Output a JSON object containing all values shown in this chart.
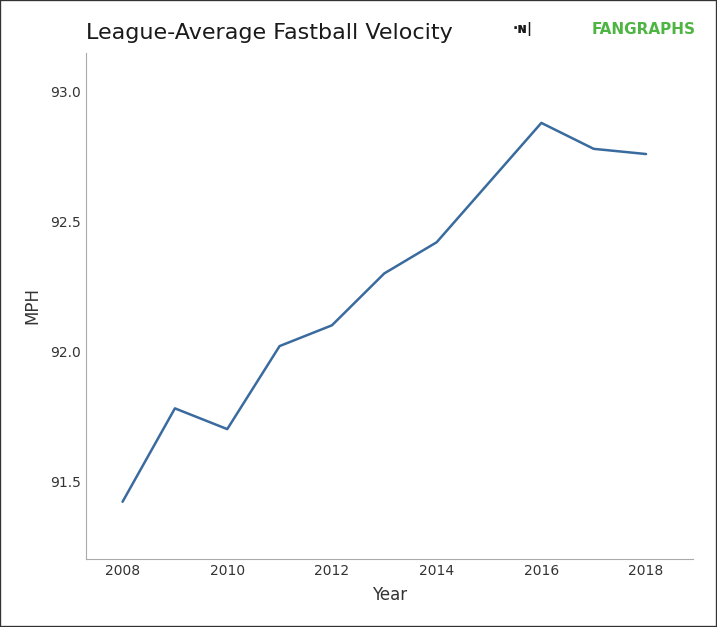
{
  "years": [
    2008,
    2009,
    2010,
    2011,
    2012,
    2013,
    2014,
    2015,
    2016,
    2017,
    2018
  ],
  "mph": [
    91.42,
    91.78,
    91.7,
    92.02,
    92.1,
    92.3,
    92.42,
    92.65,
    92.88,
    92.78,
    92.76
  ],
  "title": "League-Average Fastball Velocity",
  "xlabel": "Year",
  "ylabel": "MPH",
  "ylim": [
    91.2,
    93.15
  ],
  "xlim": [
    2007.3,
    2018.9
  ],
  "yticks": [
    91.5,
    92.0,
    92.5,
    93.0
  ],
  "xticks": [
    2008,
    2010,
    2012,
    2014,
    2016,
    2018
  ],
  "line_color": "#3a6b9e",
  "background_color": "#ffffff",
  "title_fontsize": 16,
  "axis_label_fontsize": 12,
  "tick_fontsize": 10,
  "fangraphs_green": "#4eb543",
  "fangraphs_dark": "#1a1a1a"
}
